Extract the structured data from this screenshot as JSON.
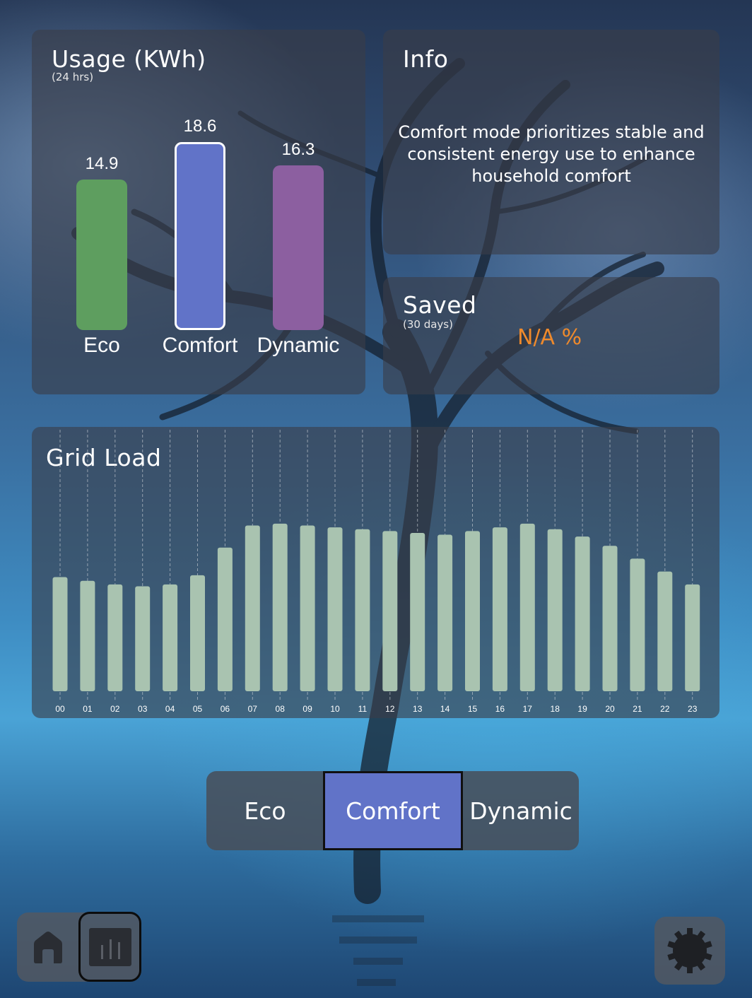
{
  "usage": {
    "title": "Usage (KWh)",
    "subtitle": "(24 hrs)",
    "chart_data": {
      "type": "bar",
      "categories": [
        "Eco",
        "Comfort",
        "Dynamic"
      ],
      "values": [
        14.9,
        18.6,
        16.3
      ],
      "value_labels": [
        "14.9",
        "18.6",
        "16.3"
      ],
      "colors": [
        "#5e9e5f",
        "#6173c8",
        "#8c5fa0"
      ],
      "highlighted": "Comfort"
    }
  },
  "info": {
    "title": "Info",
    "text": "Comfort mode prioritizes stable and consistent energy use to enhance household comfort"
  },
  "saved": {
    "title": "Saved",
    "subtitle": "(30 days)",
    "value": "N/A %",
    "value_color": "#ef8a2c"
  },
  "grid_load": {
    "title": "Grid Load",
    "chart_data": {
      "type": "bar",
      "categories": [
        "00",
        "01",
        "02",
        "03",
        "04",
        "05",
        "06",
        "07",
        "08",
        "09",
        "10",
        "11",
        "12",
        "13",
        "14",
        "15",
        "16",
        "17",
        "18",
        "19",
        "20",
        "21",
        "22",
        "23"
      ],
      "values": [
        62,
        60,
        58,
        57,
        58,
        63,
        78,
        90,
        91,
        90,
        89,
        88,
        87,
        86,
        85,
        87,
        89,
        91,
        88,
        84,
        79,
        72,
        65,
        58
      ],
      "ylim": [
        0,
        100
      ],
      "bar_color": "#a9c3b0",
      "grid": "vertical-dashed"
    }
  },
  "modes": {
    "options": [
      "Eco",
      "Comfort",
      "Dynamic"
    ],
    "selected": "Comfort",
    "selected_color": "#6173c8"
  },
  "nav": {
    "home_icon": "home-icon",
    "stats_icon": "bar-chart-icon",
    "settings_icon": "gear-icon",
    "active": "stats"
  }
}
